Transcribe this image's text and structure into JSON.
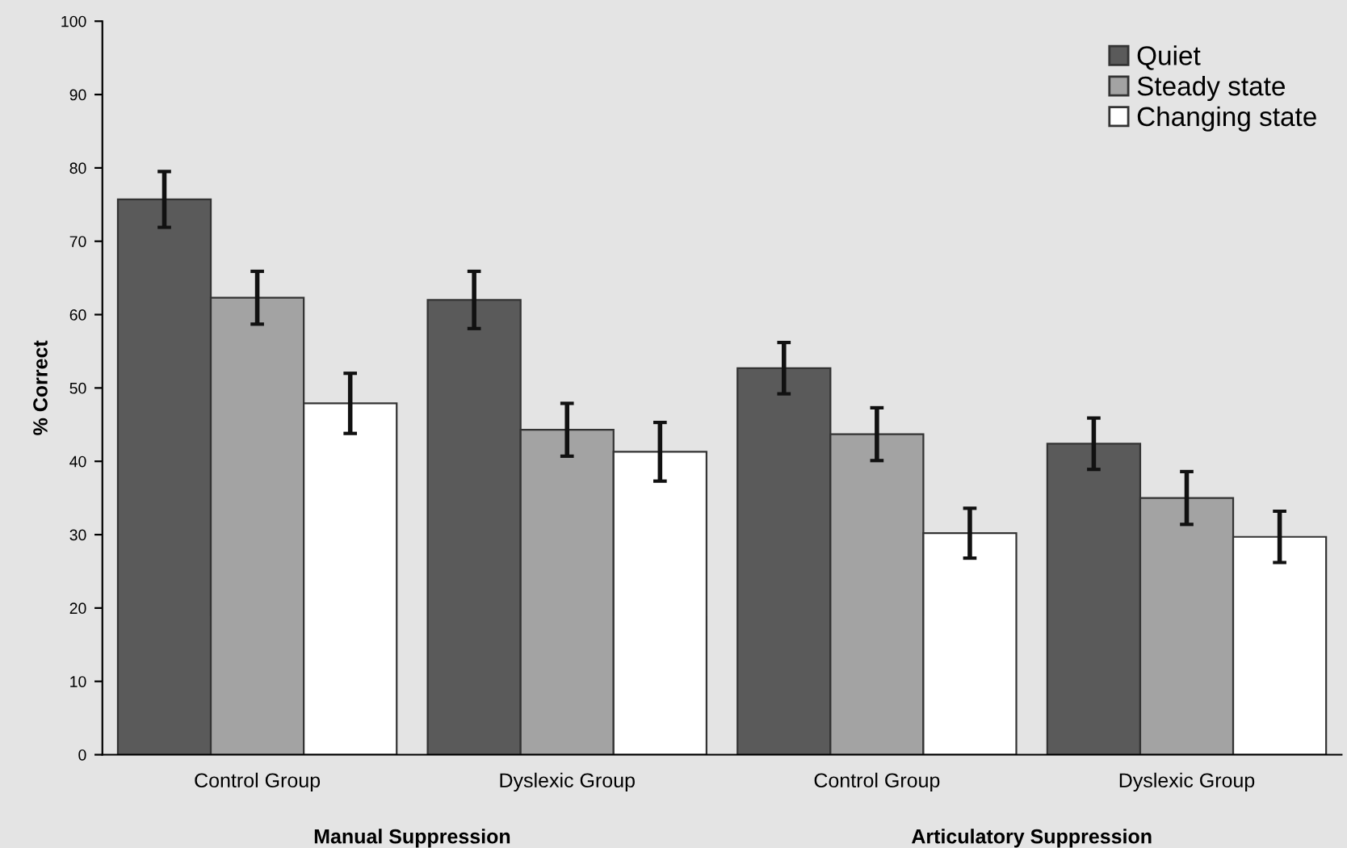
{
  "chart_data": {
    "type": "bar",
    "ylabel": "% Correct",
    "categories": [
      "Control Group",
      "Dyslexic Group",
      "Control Group",
      "Dyslexic Group"
    ],
    "series": [
      {
        "name": "Quiet",
        "color": "#5a5a5a",
        "values": [
          75.7,
          62.0,
          52.7,
          42.4
        ],
        "errors": [
          3.8,
          3.9,
          3.5,
          3.5
        ]
      },
      {
        "name": "Steady state",
        "color": "#a3a3a3",
        "values": [
          62.3,
          44.3,
          43.7,
          35.0
        ],
        "errors": [
          3.6,
          3.6,
          3.6,
          3.6
        ]
      },
      {
        "name": "Changing state",
        "color": "#ffffff",
        "values": [
          47.9,
          41.3,
          30.2,
          29.7
        ],
        "errors": [
          4.1,
          4.0,
          3.4,
          3.5
        ]
      }
    ],
    "ylim": [
      0,
      100
    ],
    "yticks": [
      0,
      10,
      20,
      30,
      40,
      50,
      60,
      70,
      80,
      90,
      100
    ],
    "annotations": [
      "Manual Suppression",
      "Articulatory Suppression"
    ],
    "legend": "top right",
    "grid": false
  }
}
